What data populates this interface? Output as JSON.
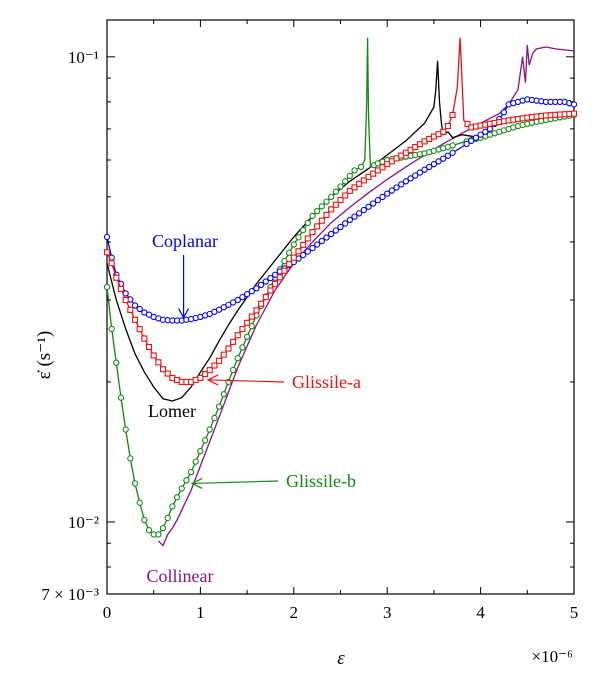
{
  "chart_data": {
    "type": "line",
    "xlabel": "ε",
    "ylabel": "ε̇ (s⁻¹)",
    "x_multiplier": "×10⁻⁶",
    "xlim": [
      0,
      5
    ],
    "ylim": [
      0.007,
      0.12
    ],
    "yscale": "log",
    "grid": false,
    "x_ticks": [
      {
        "value": 0,
        "label": "0"
      },
      {
        "value": 1,
        "label": "1"
      },
      {
        "value": 2,
        "label": "2"
      },
      {
        "value": 3,
        "label": "3"
      },
      {
        "value": 4,
        "label": "4"
      },
      {
        "value": 5,
        "label": "5"
      }
    ],
    "y_ticks": [
      {
        "value": 0.007,
        "label": "7 × 10⁻³"
      },
      {
        "value": 0.01,
        "label": "10⁻²"
      },
      {
        "value": 0.1,
        "label": "10⁻¹"
      }
    ],
    "series": [
      {
        "name": "Lomer",
        "color": "#000000",
        "marker": "none",
        "x": [
          0,
          0.1,
          0.2,
          0.3,
          0.4,
          0.5,
          0.6,
          0.7,
          0.8,
          0.9,
          1.0,
          1.1,
          1.2,
          1.3,
          1.4,
          1.6,
          1.8,
          2.0,
          2.2,
          2.4,
          2.6,
          2.8,
          3.0,
          3.2,
          3.4,
          3.5,
          3.52,
          3.54,
          3.56,
          3.58,
          3.6,
          3.65,
          3.7,
          3.8,
          4.0
        ],
        "y": [
          0.036,
          0.03,
          0.026,
          0.023,
          0.021,
          0.0195,
          0.0184,
          0.0182,
          0.0185,
          0.0195,
          0.021,
          0.0225,
          0.0245,
          0.0265,
          0.0285,
          0.0325,
          0.0365,
          0.041,
          0.0455,
          0.05,
          0.054,
          0.0575,
          0.0615,
          0.066,
          0.072,
          0.078,
          0.085,
          0.098,
          0.08,
          0.072,
          0.068,
          0.069,
          0.067,
          0.068,
          0.067
        ]
      },
      {
        "name": "Coplanar",
        "color": "#0000ee",
        "marker": "circle",
        "x": [
          0,
          0.05,
          0.1,
          0.15,
          0.2,
          0.3,
          0.4,
          0.5,
          0.6,
          0.7,
          0.8,
          0.9,
          1.0,
          1.1,
          1.2,
          1.4,
          1.6,
          1.8,
          2.0,
          2.2,
          2.4,
          2.6,
          2.8,
          3.0,
          3.2,
          3.4,
          3.6,
          3.8,
          4.0,
          4.1,
          4.2,
          4.25,
          4.3,
          4.5,
          4.7,
          4.9,
          5.0
        ],
        "y": [
          0.041,
          0.037,
          0.034,
          0.0325,
          0.031,
          0.0292,
          0.0282,
          0.0276,
          0.0272,
          0.0271,
          0.0271,
          0.0273,
          0.0276,
          0.028,
          0.0286,
          0.03,
          0.0318,
          0.034,
          0.0362,
          0.0388,
          0.0416,
          0.0446,
          0.0476,
          0.0508,
          0.054,
          0.0572,
          0.0604,
          0.064,
          0.068,
          0.07,
          0.0735,
          0.076,
          0.079,
          0.081,
          0.08,
          0.08,
          0.079
        ]
      },
      {
        "name": "Glissile-a",
        "color": "#ee1111",
        "marker": "square",
        "x": [
          0,
          0.05,
          0.1,
          0.2,
          0.3,
          0.4,
          0.5,
          0.6,
          0.7,
          0.8,
          0.9,
          1.0,
          1.1,
          1.2,
          1.3,
          1.4,
          1.6,
          1.8,
          2.0,
          2.2,
          2.4,
          2.6,
          2.8,
          3.0,
          3.2,
          3.4,
          3.6,
          3.65,
          3.7,
          3.75,
          3.78,
          3.82,
          3.9,
          4.1,
          4.3,
          4.5,
          4.7,
          5.0
        ],
        "y": [
          0.038,
          0.036,
          0.0335,
          0.03,
          0.0272,
          0.0248,
          0.0228,
          0.0213,
          0.0204,
          0.02,
          0.02,
          0.0204,
          0.0212,
          0.0222,
          0.0236,
          0.0252,
          0.0285,
          0.0325,
          0.037,
          0.042,
          0.047,
          0.0515,
          0.0552,
          0.0588,
          0.0622,
          0.0658,
          0.069,
          0.071,
          0.075,
          0.086,
          0.11,
          0.073,
          0.0705,
          0.0718,
          0.073,
          0.074,
          0.0748,
          0.0755
        ]
      },
      {
        "name": "Glissile-b",
        "color": "#118811",
        "marker": "circle",
        "x": [
          0,
          0.05,
          0.1,
          0.15,
          0.2,
          0.25,
          0.3,
          0.35,
          0.4,
          0.45,
          0.5,
          0.55,
          0.6,
          0.65,
          0.7,
          0.75,
          0.8,
          0.9,
          1.0,
          1.1,
          1.2,
          1.3,
          1.4,
          1.6,
          1.8,
          2.0,
          2.2,
          2.4,
          2.55,
          2.65,
          2.72,
          2.76,
          2.78,
          2.79,
          2.8,
          2.82,
          2.9,
          3.0,
          3.2,
          3.4,
          3.6,
          3.8,
          4.0,
          4.2,
          4.4,
          4.6,
          4.8,
          5.0
        ],
        "y": [
          0.032,
          0.026,
          0.022,
          0.0185,
          0.0158,
          0.0137,
          0.0121,
          0.011,
          0.0101,
          0.0096,
          0.0094,
          0.0094,
          0.0097,
          0.0102,
          0.0108,
          0.0113,
          0.0118,
          0.0128,
          0.0142,
          0.0158,
          0.0177,
          0.02,
          0.0225,
          0.0278,
          0.0335,
          0.0395,
          0.0455,
          0.05,
          0.054,
          0.057,
          0.058,
          0.06,
          0.08,
          0.11,
          0.075,
          0.058,
          0.059,
          0.06,
          0.061,
          0.062,
          0.0636,
          0.0654,
          0.067,
          0.069,
          0.071,
          0.0725,
          0.0738,
          0.075
        ]
      },
      {
        "name": "Collinear",
        "color": "#881188",
        "marker": "none",
        "x": [
          0.55,
          0.6,
          0.65,
          0.7,
          0.75,
          0.8,
          0.9,
          1.0,
          1.2,
          1.4,
          1.6,
          1.8,
          2.0,
          2.2,
          2.4,
          2.6,
          2.8,
          3.0,
          3.2,
          3.4,
          3.6,
          3.8,
          4.0,
          4.2,
          4.3,
          4.4,
          4.45,
          4.48,
          4.5,
          4.52,
          4.56,
          4.6,
          4.7,
          4.8,
          5.0
        ],
        "y": [
          0.0091,
          0.0089,
          0.0094,
          0.0097,
          0.0101,
          0.0106,
          0.0117,
          0.0132,
          0.0168,
          0.0215,
          0.0265,
          0.0315,
          0.036,
          0.04,
          0.044,
          0.0475,
          0.051,
          0.0545,
          0.058,
          0.0615,
          0.065,
          0.0685,
          0.072,
          0.0755,
          0.079,
          0.085,
          0.1,
          0.088,
          0.106,
          0.096,
          0.102,
          0.104,
          0.105,
          0.104,
          0.103
        ]
      }
    ],
    "annotations": [
      {
        "text": "Coplanar",
        "color": "#0000ee",
        "arrow": "down",
        "point": {
          "x": 0.82,
          "y": 0.0271
        }
      },
      {
        "text": "Glissile-a",
        "color": "#ee1111",
        "arrow": "left",
        "point": {
          "x": 1.05,
          "y": 0.0202
        }
      },
      {
        "text": "Lomer",
        "color": "#000000",
        "arrow": "none",
        "point": {
          "x": 0.68,
          "y": 0.0182
        }
      },
      {
        "text": "Glissile-b",
        "color": "#118811",
        "arrow": "left",
        "point": {
          "x": 0.88,
          "y": 0.0121
        }
      },
      {
        "text": "Collinear",
        "color": "#881188",
        "arrow": "none",
        "point": {
          "x": 0.62,
          "y": 0.0089
        }
      }
    ]
  }
}
